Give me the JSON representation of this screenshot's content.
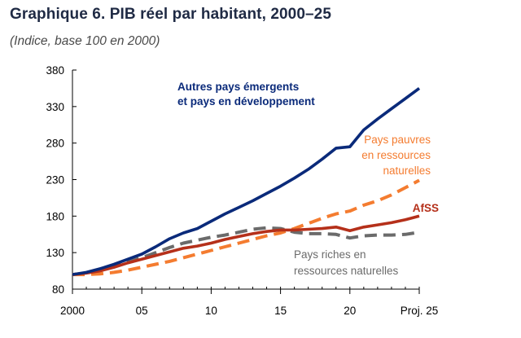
{
  "title": "Graphique 6. PIB réel par habitant, 2000–25",
  "subtitle": "(Indice, base 100 en 2000)",
  "chart_data": {
    "type": "line",
    "xlim": [
      2000,
      2025
    ],
    "ylim": [
      80,
      380
    ],
    "yticks": [
      80,
      130,
      180,
      230,
      280,
      330,
      380
    ],
    "xticks": [
      2000,
      2005,
      2010,
      2015,
      2020,
      2025
    ],
    "xtick_labels": [
      "2000",
      "05",
      "10",
      "15",
      "20",
      "Proj. 25"
    ],
    "grid": false,
    "series": [
      {
        "name": "Autres pays émergents et pays en développement",
        "label_lines": [
          "Autres pays émergents",
          "et pays en développement"
        ],
        "color": "#0a2a7a",
        "style": "solid",
        "x": [
          2000,
          2001,
          2002,
          2003,
          2004,
          2005,
          2006,
          2007,
          2008,
          2009,
          2010,
          2011,
          2012,
          2013,
          2014,
          2015,
          2016,
          2017,
          2018,
          2019,
          2020,
          2021,
          2022,
          2023,
          2024,
          2025
        ],
        "y": [
          100,
          103,
          108,
          114,
          121,
          128,
          138,
          149,
          157,
          163,
          173,
          183,
          192,
          201,
          211,
          221,
          232,
          244,
          258,
          273,
          275,
          298,
          313,
          327,
          341,
          355
        ]
      },
      {
        "name": "Pays pauvres en ressources naturelles",
        "label_lines": [
          "Pays pauvres",
          "en ressources",
          "naturelles"
        ],
        "color": "#f47c30",
        "style": "dashed",
        "x": [
          2000,
          2001,
          2002,
          2003,
          2004,
          2005,
          2006,
          2007,
          2008,
          2009,
          2010,
          2011,
          2012,
          2013,
          2014,
          2015,
          2016,
          2017,
          2018,
          2019,
          2020,
          2021,
          2022,
          2023,
          2024,
          2025
        ],
        "y": [
          100,
          100,
          101,
          103,
          106,
          110,
          114,
          118,
          123,
          128,
          133,
          138,
          143,
          148,
          153,
          157,
          163,
          170,
          177,
          183,
          187,
          195,
          201,
          209,
          219,
          229
        ]
      },
      {
        "name": "AfSS",
        "label_lines": [
          "AfSS"
        ],
        "color": "#b5301a",
        "style": "solid",
        "x": [
          2000,
          2001,
          2002,
          2003,
          2004,
          2005,
          2006,
          2007,
          2008,
          2009,
          2010,
          2011,
          2012,
          2013,
          2014,
          2015,
          2016,
          2017,
          2018,
          2019,
          2020,
          2021,
          2022,
          2023,
          2024,
          2025
        ],
        "y": [
          100,
          102,
          105,
          110,
          116,
          121,
          126,
          131,
          136,
          139,
          143,
          148,
          152,
          156,
          159,
          161,
          161,
          162,
          163,
          165,
          160,
          165,
          168,
          171,
          175,
          180
        ]
      },
      {
        "name": "Pays riches en ressources naturelles",
        "label_lines": [
          "Pays riches en",
          "ressources naturelles"
        ],
        "color": "#6b6b6b",
        "style": "dashed",
        "x": [
          2000,
          2001,
          2002,
          2003,
          2004,
          2005,
          2006,
          2007,
          2008,
          2009,
          2010,
          2011,
          2012,
          2013,
          2014,
          2015,
          2016,
          2017,
          2018,
          2019,
          2020,
          2021,
          2022,
          2023,
          2024,
          2025
        ],
        "y": [
          100,
          102,
          106,
          111,
          117,
          123,
          130,
          137,
          143,
          147,
          151,
          154,
          158,
          162,
          164,
          163,
          158,
          156,
          156,
          155,
          150,
          153,
          154,
          154,
          155,
          158
        ]
      }
    ]
  }
}
